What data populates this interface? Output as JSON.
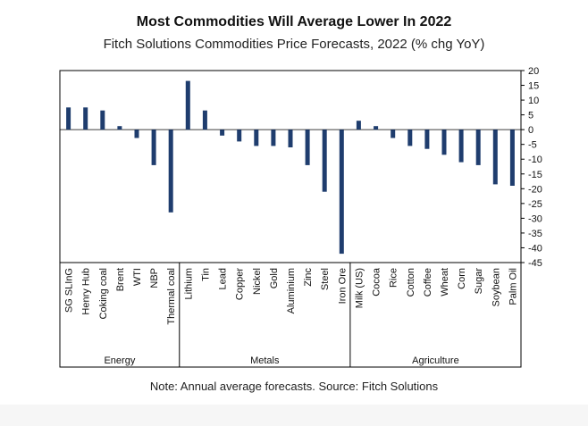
{
  "chart_data": {
    "type": "bar",
    "title": "Most Commodities Will Average Lower In 2022",
    "subtitle": "Fitch Solutions Commodities Price Forecasts, 2022 (% chg YoY)",
    "note": "Note: Annual average forecasts. Source: Fitch Solutions",
    "ylim": [
      -45,
      20
    ],
    "yticks": [
      20,
      15,
      10,
      5,
      0,
      -5,
      -10,
      -15,
      -20,
      -25,
      -30,
      -35,
      -40,
      -45
    ],
    "ytick_labels": [
      "20",
      "15",
      "10",
      "5",
      "0",
      "-5",
      "-10",
      "-15",
      "-20",
      "-25",
      "-30",
      "-35",
      "-40",
      "-45"
    ],
    "bar_color": "#1f3d6e",
    "categories": [
      "SG SLInG",
      "Henry Hub",
      "Coking coal",
      "Brent",
      "WTI",
      "NBP",
      "Thermal coal",
      "Lithium",
      "Tin",
      "Lead",
      "Copper",
      "Nickel",
      "Gold",
      "Aluminium",
      "Zinc",
      "Steel",
      "Iron Ore",
      "Milk (US)",
      "Cocoa",
      "Rice",
      "Cotton",
      "Coffee",
      "Wheat",
      "Corn",
      "Sugar",
      "Soybean",
      "Palm Oil"
    ],
    "values": [
      7.5,
      7.5,
      6.5,
      1.2,
      -2.8,
      -12,
      -28,
      16.5,
      6.5,
      -2,
      -4,
      -5.5,
      -5.5,
      -6,
      -12,
      -21,
      -42,
      3,
      1.2,
      -2.8,
      -5.5,
      -6.5,
      -8.5,
      -11,
      -12,
      -18.5,
      -19
    ],
    "groups": [
      {
        "name": "Energy",
        "count": 7
      },
      {
        "name": "Metals",
        "count": 10
      },
      {
        "name": "Agriculture",
        "count": 10
      }
    ]
  }
}
